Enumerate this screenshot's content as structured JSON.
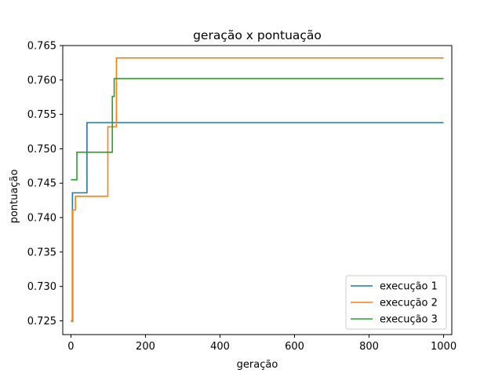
{
  "chart_data": {
    "type": "line",
    "title": "geração x pontuação",
    "xlabel": "geração",
    "ylabel": "pontuação",
    "xlim": [
      -22,
      1022
    ],
    "ylim": [
      0.723,
      0.765
    ],
    "xticks": [
      0,
      200,
      400,
      600,
      800,
      1000
    ],
    "yticks": [
      0.725,
      0.73,
      0.735,
      0.74,
      0.745,
      0.75,
      0.755,
      0.76,
      0.765
    ],
    "grid": false,
    "legend_position": "lower-right",
    "series": [
      {
        "name": "execução 1",
        "color": "#1f77b4",
        "steps": [
          [
            0,
            0.725
          ],
          [
            4,
            0.7436
          ],
          [
            43,
            0.7538
          ],
          [
            1000,
            0.7538
          ]
        ]
      },
      {
        "name": "execução 2",
        "color": "#ff7f0e",
        "steps": [
          [
            0,
            0.7249
          ],
          [
            5,
            0.7411
          ],
          [
            12,
            0.7431
          ],
          [
            99,
            0.7532
          ],
          [
            122,
            0.7632
          ],
          [
            1000,
            0.7632
          ]
        ]
      },
      {
        "name": "execução 3",
        "color": "#2ca02c",
        "steps": [
          [
            0,
            0.7455
          ],
          [
            16,
            0.7495
          ],
          [
            111,
            0.7576
          ],
          [
            116,
            0.7602
          ],
          [
            1000,
            0.7602
          ]
        ]
      }
    ]
  }
}
